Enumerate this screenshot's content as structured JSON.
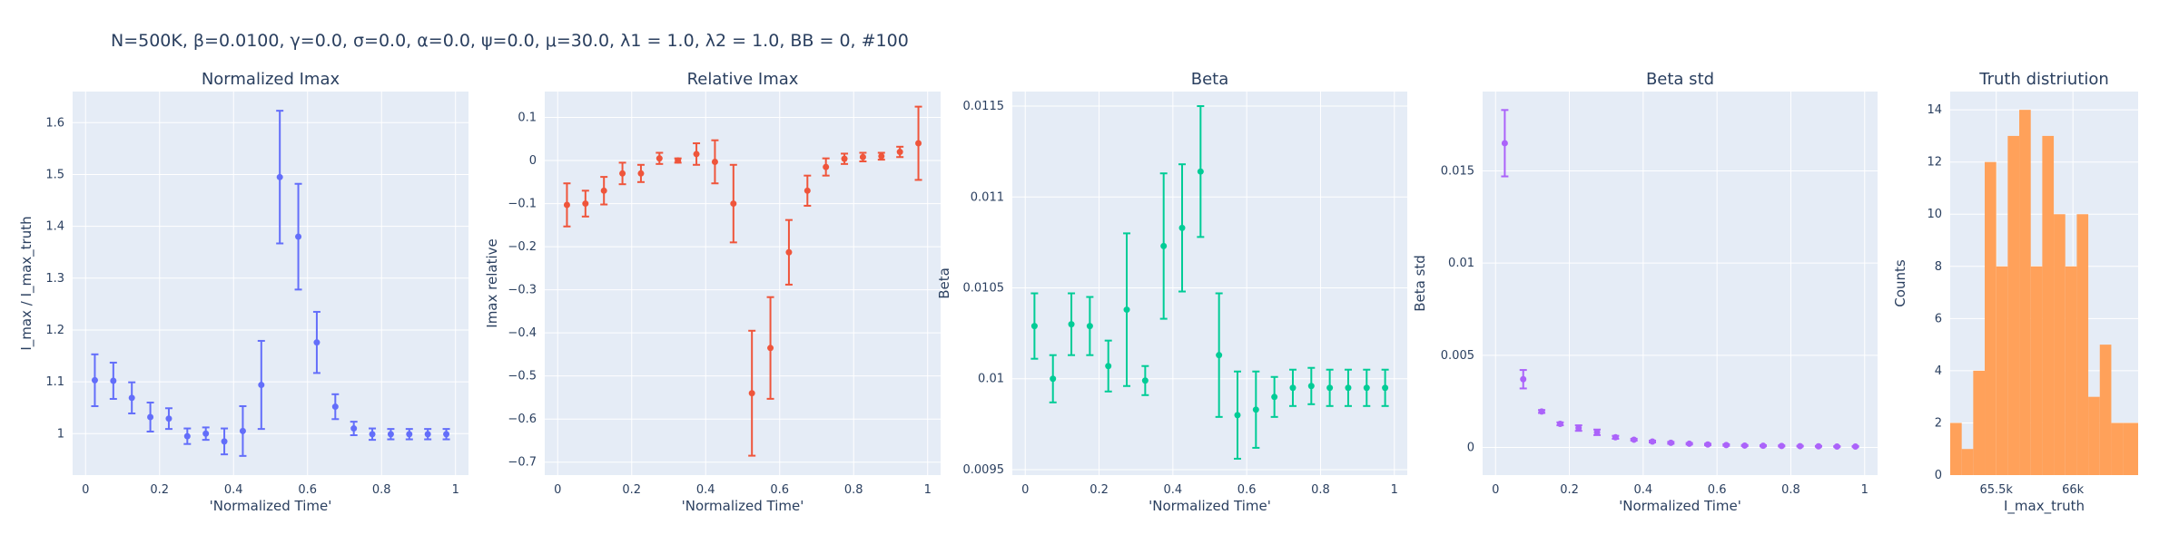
{
  "figure": {
    "suptitle": "N=500K, β=0.0100, γ=0.0, σ=0.0,  α=0.0, ψ=0.0, μ=30.0, λ1 = 1.0, λ2 = 1.0, BB = 0, #100"
  },
  "style": {
    "plot_bg": "#E5ECF6",
    "grid": "#ffffff",
    "text": "#2a3f5f"
  },
  "chart_data": [
    {
      "type": "scatter",
      "title": "Normalized Imax",
      "xlabel": "'Normalized Time'",
      "ylabel": "I_max / I_max_truth",
      "color": "#636EFA",
      "xlim": [
        -0.035,
        1.035
      ],
      "ylim": [
        0.92,
        1.66
      ],
      "xticks": [
        0,
        0.2,
        0.4,
        0.6,
        0.8,
        1
      ],
      "xtick_labels": [
        "0",
        "0.2",
        "0.4",
        "0.6",
        "0.8",
        "1"
      ],
      "yticks": [
        1,
        1.1,
        1.2,
        1.3,
        1.4,
        1.5,
        1.6
      ],
      "ytick_labels": [
        "1",
        "1.1",
        "1.2",
        "1.3",
        "1.4",
        "1.5",
        "1.6"
      ],
      "x": [
        0.025,
        0.075,
        0.125,
        0.175,
        0.225,
        0.275,
        0.325,
        0.375,
        0.425,
        0.475,
        0.525,
        0.575,
        0.625,
        0.675,
        0.725,
        0.775,
        0.825,
        0.875,
        0.925,
        0.975
      ],
      "y": [
        1.103,
        1.102,
        1.069,
        1.032,
        1.029,
        0.995,
        1.0,
        0.985,
        1.005,
        1.094,
        1.495,
        1.38,
        1.176,
        1.052,
        1.01,
        0.999,
        0.999,
        0.999,
        0.999,
        0.999
      ],
      "err": [
        0.05,
        0.035,
        0.03,
        0.028,
        0.02,
        0.015,
        0.012,
        0.025,
        0.048,
        0.085,
        0.128,
        0.102,
        0.059,
        0.024,
        0.013,
        0.011,
        0.01,
        0.01,
        0.01,
        0.01
      ]
    },
    {
      "type": "scatter",
      "title": "Relative Imax",
      "xlabel": "'Normalized Time'",
      "ylabel": "Imax relative",
      "color": "#EF553B",
      "xlim": [
        -0.035,
        1.035
      ],
      "ylim": [
        -0.73,
        0.16
      ],
      "xticks": [
        0,
        0.2,
        0.4,
        0.6,
        0.8,
        1
      ],
      "xtick_labels": [
        "0",
        "0.2",
        "0.4",
        "0.6",
        "0.8",
        "1"
      ],
      "yticks": [
        0.1,
        0,
        -0.1,
        -0.2,
        -0.3,
        -0.4,
        -0.5,
        -0.6,
        -0.7
      ],
      "ytick_labels": [
        "0.1",
        "0",
        "−0.1",
        "−0.2",
        "−0.3",
        "−0.4",
        "−0.5",
        "−0.6",
        "−0.7"
      ],
      "x": [
        0.025,
        0.075,
        0.125,
        0.175,
        0.225,
        0.275,
        0.325,
        0.375,
        0.425,
        0.475,
        0.525,
        0.575,
        0.625,
        0.675,
        0.725,
        0.775,
        0.825,
        0.875,
        0.925,
        0.975
      ],
      "y": [
        -0.103,
        -0.1,
        -0.07,
        -0.03,
        -0.03,
        0.005,
        0.0,
        0.015,
        -0.003,
        -0.1,
        -0.54,
        -0.435,
        -0.213,
        -0.07,
        -0.015,
        0.004,
        0.008,
        0.01,
        0.02,
        0.04
      ],
      "err": [
        0.05,
        0.03,
        0.032,
        0.025,
        0.02,
        0.013,
        0.005,
        0.025,
        0.05,
        0.09,
        0.145,
        0.118,
        0.075,
        0.035,
        0.02,
        0.012,
        0.01,
        0.008,
        0.012,
        0.085
      ]
    },
    {
      "type": "scatter",
      "title": "Beta",
      "xlabel": "'Normalized Time'",
      "ylabel": "Beta",
      "color": "#00CC96",
      "xlim": [
        -0.035,
        1.035
      ],
      "ylim": [
        0.00947,
        0.01158
      ],
      "xticks": [
        0,
        0.2,
        0.4,
        0.6,
        0.8,
        1
      ],
      "xtick_labels": [
        "0",
        "0.2",
        "0.4",
        "0.6",
        "0.8",
        "1"
      ],
      "yticks": [
        0.0095,
        0.01,
        0.0105,
        0.011,
        0.0115
      ],
      "ytick_labels": [
        "0.0095",
        "0.01",
        "0.0105",
        "0.011",
        "0.0115"
      ],
      "x": [
        0.025,
        0.075,
        0.125,
        0.175,
        0.225,
        0.275,
        0.325,
        0.375,
        0.425,
        0.475,
        0.525,
        0.575,
        0.625,
        0.675,
        0.725,
        0.775,
        0.825,
        0.875,
        0.925,
        0.975
      ],
      "y": [
        0.01029,
        0.01,
        0.0103,
        0.01029,
        0.01007,
        0.01038,
        0.00999,
        0.01073,
        0.01083,
        0.01114,
        0.01013,
        0.0098,
        0.00983,
        0.0099,
        0.00995,
        0.00996,
        0.00995,
        0.00995,
        0.00995,
        0.00995
      ],
      "err": [
        0.00018,
        0.00013,
        0.00017,
        0.00016,
        0.00014,
        0.00042,
        8e-05,
        0.0004,
        0.00035,
        0.00036,
        0.00034,
        0.00024,
        0.00021,
        0.00011,
        0.0001,
        0.0001,
        0.0001,
        0.0001,
        0.0001,
        0.0001
      ]
    },
    {
      "type": "scatter",
      "title": "Beta std",
      "xlabel": "'Normalized Time'",
      "ylabel": "Beta std",
      "color": "#AB63FA",
      "xlim": [
        -0.035,
        1.035
      ],
      "ylim": [
        -0.0015,
        0.0193
      ],
      "xticks": [
        0,
        0.2,
        0.4,
        0.6,
        0.8,
        1
      ],
      "xtick_labels": [
        "0",
        "0.2",
        "0.4",
        "0.6",
        "0.8",
        "1"
      ],
      "yticks": [
        0,
        0.005,
        0.01,
        0.015
      ],
      "ytick_labels": [
        "0",
        "0.005",
        "0.01",
        "0.015"
      ],
      "x": [
        0.025,
        0.075,
        0.125,
        0.175,
        0.225,
        0.275,
        0.325,
        0.375,
        0.425,
        0.475,
        0.525,
        0.575,
        0.625,
        0.675,
        0.725,
        0.775,
        0.825,
        0.875,
        0.925,
        0.975
      ],
      "y": [
        0.0165,
        0.0037,
        0.00195,
        0.00128,
        0.00105,
        0.00082,
        0.00055,
        0.00042,
        0.00032,
        0.00025,
        0.0002,
        0.00016,
        0.00013,
        0.0001,
        9e-05,
        8e-05,
        7e-05,
        6e-05,
        5e-05,
        5e-05
      ],
      "err": [
        0.0018,
        0.0005,
        8e-05,
        8e-05,
        0.00015,
        0.00015,
        8e-05,
        5e-05,
        5e-05,
        5e-05,
        4e-05,
        4e-05,
        4e-05,
        3e-05,
        3e-05,
        3e-05,
        2e-05,
        2e-05,
        2e-05,
        2e-05
      ]
    },
    {
      "type": "histogram",
      "title": "Truth distriution",
      "xlabel": "I_max_truth",
      "ylabel": "Counts",
      "color": "#FFA15A",
      "xlim": [
        65200,
        66425
      ],
      "ylim": [
        0,
        14.7
      ],
      "xticks": [
        65500,
        66000
      ],
      "xtick_labels": [
        "65.5k",
        "66k"
      ],
      "yticks": [
        0,
        2,
        4,
        6,
        8,
        10,
        12,
        14
      ],
      "ytick_labels": [
        "0",
        "2",
        "4",
        "6",
        "8",
        "10",
        "12",
        "14"
      ],
      "bin_edges": [
        65200,
        65275,
        65350,
        65425,
        65500,
        65575,
        65650,
        65725,
        65800,
        65875,
        65950,
        66025,
        66100,
        66175,
        66250,
        66325,
        66425
      ],
      "counts": [
        2,
        1,
        4,
        12,
        8,
        13,
        14,
        8,
        13,
        10,
        8,
        10,
        3,
        5,
        2,
        2
      ]
    }
  ]
}
